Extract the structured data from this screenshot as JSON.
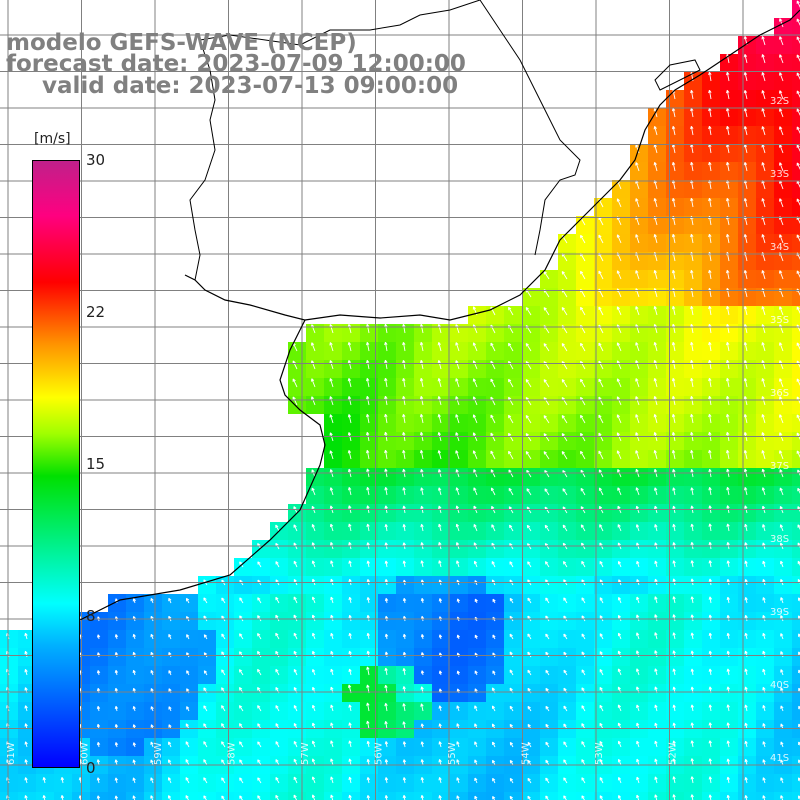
{
  "title": {
    "model": "modelo GEFS-WAVE (NCEP)",
    "forecast": "forecast date: 2023-07-09 12:00:00",
    "valid": "valid date: 2023-07-13 09:00:00"
  },
  "colorbar": {
    "unit": "[m/s]",
    "ticks": [
      "30",
      "22",
      "15",
      "8",
      "0"
    ],
    "range": [
      0,
      30
    ]
  },
  "lat_labels": [
    "32S",
    "33S",
    "34S",
    "35S",
    "36S",
    "37S",
    "38S",
    "39S",
    "40S",
    "41S"
  ],
  "lon_labels": [
    "61W",
    "60W",
    "59W",
    "58W",
    "57W",
    "56W",
    "55W",
    "54W",
    "53W",
    "52W"
  ],
  "colors": {
    "land": "#ffffff",
    "coast": "#000000",
    "grid": "#808080",
    "arrow": "#ffffff",
    "title": "#808080"
  }
}
